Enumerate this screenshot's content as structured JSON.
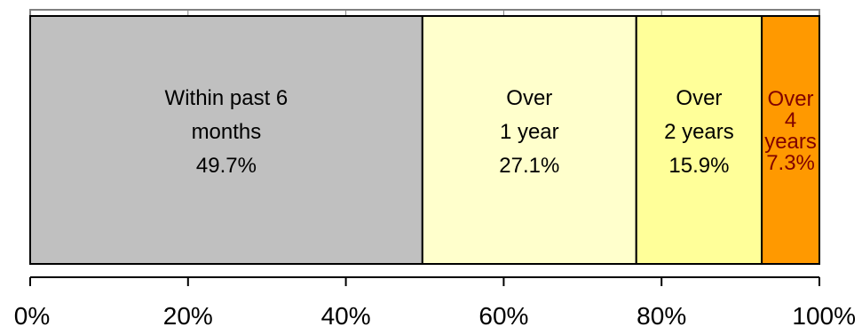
{
  "chart_data": {
    "type": "bar",
    "orientation": "horizontal-stacked-100",
    "categories": [
      ""
    ],
    "series": [
      {
        "label_lines": [
          "Within past 6",
          "months",
          "49.7%"
        ],
        "values": [
          49.7
        ],
        "color": "#c0c0c0",
        "text_color": "#000000"
      },
      {
        "label_lines": [
          "Over",
          "1 year",
          "27.1%"
        ],
        "values": [
          27.1
        ],
        "color": "#ffffcc",
        "text_color": "#000000"
      },
      {
        "label_lines": [
          "Over",
          "2 years",
          "15.9%"
        ],
        "values": [
          15.9
        ],
        "color": "#ffff99",
        "text_color": "#000000"
      },
      {
        "label_lines": [
          "Over",
          "4",
          "years",
          "7.3%"
        ],
        "values": [
          7.3
        ],
        "color": "#ff9900",
        "text_color": "#800000"
      }
    ],
    "xlim": [
      0,
      100
    ],
    "x_ticks": [
      0,
      20,
      40,
      60,
      80,
      100
    ],
    "x_tick_labels": [
      "0%",
      "20%",
      "40%",
      "60%",
      "80%",
      "100%"
    ],
    "grid": "vertical",
    "legend": "none"
  }
}
